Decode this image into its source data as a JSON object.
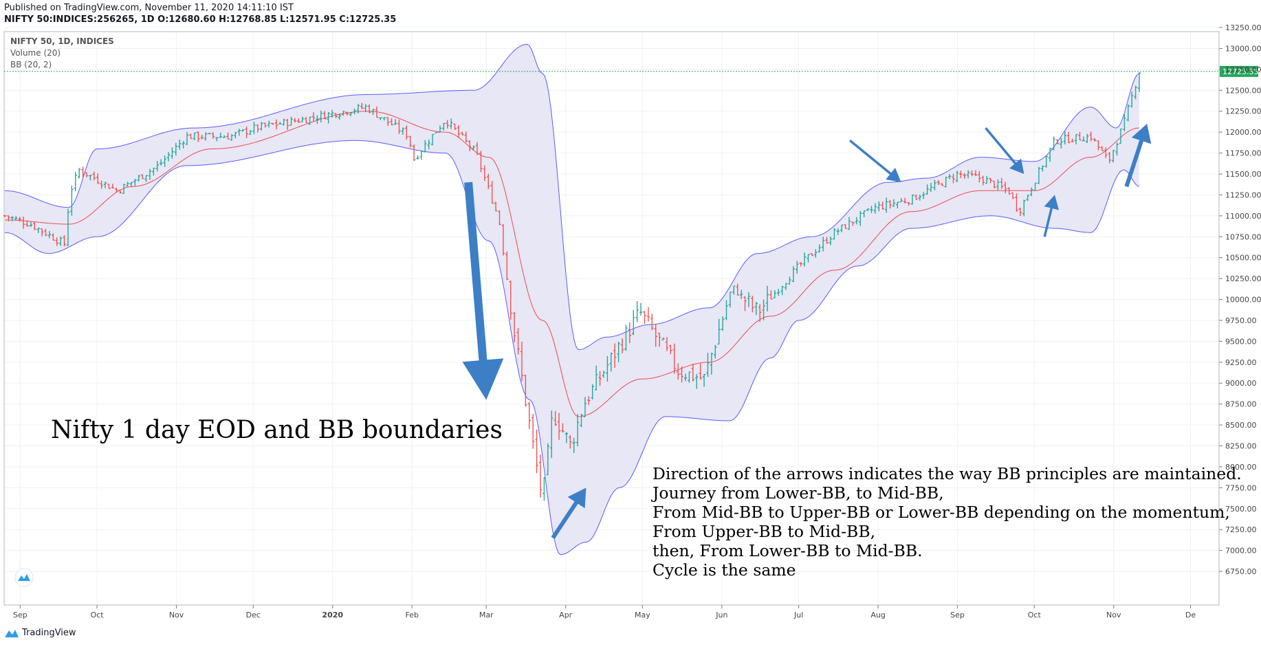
{
  "header": {
    "published": "Published on TradingView.com, November 11, 2020 14:11:10 IST",
    "symbol_ohlc": "NIFTY 50:INDICES:256265, 1D  O:12680.60 H:12768.85 L:12571.95 C:12725.35"
  },
  "legend": [
    "NIFTY 50, 1D, INDICES",
    "Volume (20)",
    "BB (20, 2)"
  ],
  "brand": {
    "name": "TradingView"
  },
  "colors": {
    "up": "#26a69a",
    "down": "#ef5350",
    "band_line": "#5a5aff",
    "band_fill": "#e6e6f4",
    "mid_line": "#f04a4a",
    "arrow": "#3d7fc6",
    "last_price": "#26a65b",
    "grid": "#eef1f5"
  },
  "annotations": {
    "title": "Nifty 1 day EOD and BB boundaries",
    "body": [
      "Direction of the arrows indicates the way BB principles are maintained.",
      "Journey from Lower-BB, to Mid-BB,",
      "From Mid-BB to Upper-BB or Lower-BB depending on the momentum,",
      "From Upper-BB to Mid-BB,",
      "then, From Lower-BB to Mid-BB.",
      "Cycle is the same"
    ]
  },
  "chart_data": {
    "type": "candlestick",
    "x_labels": [
      "Sep",
      "Oct",
      "Nov",
      "Dec",
      "2020",
      "Feb",
      "Mar",
      "Apr",
      "May",
      "Jun",
      "Jul",
      "Aug",
      "Sep",
      "Oct",
      "Nov",
      "De"
    ],
    "y_ticks": [
      6750,
      7000,
      7250,
      7500,
      7750,
      8000,
      8250,
      8500,
      8750,
      9000,
      9250,
      9500,
      9750,
      10000,
      10250,
      10500,
      10750,
      11000,
      11250,
      11500,
      11750,
      12000,
      12250,
      12500,
      12750,
      13000,
      13250
    ],
    "y_tick_labels": [
      "6750.00",
      "7000.00",
      "7250.00",
      "7500.00",
      "7750.00",
      "8000.00",
      "8250.00",
      "8500.00",
      "8750.00",
      "9000.00",
      "9250.00",
      "9500.00",
      "9750.00",
      "10000.00",
      "10250.00",
      "10500.00",
      "10750.00",
      "11000.00",
      "11250.00",
      "11500.00",
      "11750.00",
      "12000.00",
      "12250.00",
      "12500.00",
      "12750.00",
      "13000.00",
      "13250.00"
    ],
    "last_price": 12725.35,
    "last_price_label": "12725.35",
    "indicator": "Bollinger Bands (20, 2)",
    "close_path": [
      [
        "2019-08-26",
        11000
      ],
      [
        "2019-09-05",
        10900
      ],
      [
        "2019-09-19",
        10650
      ],
      [
        "2019-09-20",
        11250
      ],
      [
        "2019-09-24",
        11550
      ],
      [
        "2019-10-09",
        11300
      ],
      [
        "2019-10-25",
        11600
      ],
      [
        "2019-11-05",
        11950
      ],
      [
        "2019-11-22",
        11950
      ],
      [
        "2019-12-02",
        12050
      ],
      [
        "2019-12-20",
        12150
      ],
      [
        "2020-01-14",
        12300
      ],
      [
        "2020-01-31",
        11950
      ],
      [
        "2020-02-01",
        11650
      ],
      [
        "2020-02-14",
        12150
      ],
      [
        "2020-02-26",
        11750
      ],
      [
        "2020-03-06",
        10950
      ],
      [
        "2020-03-12",
        9600
      ],
      [
        "2020-03-19",
        8300
      ],
      [
        "2020-03-23",
        7600
      ],
      [
        "2020-03-27",
        8650
      ],
      [
        "2020-04-03",
        8250
      ],
      [
        "2020-04-08",
        8750
      ],
      [
        "2020-04-30",
        9850
      ],
      [
        "2020-05-15",
        9150
      ],
      [
        "2020-05-25",
        9050
      ],
      [
        "2020-06-05",
        10150
      ],
      [
        "2020-06-15",
        9850
      ],
      [
        "2020-07-01",
        10400
      ],
      [
        "2020-07-15",
        10800
      ],
      [
        "2020-07-31",
        11100
      ],
      [
        "2020-08-14",
        11200
      ],
      [
        "2020-09-01",
        11500
      ],
      [
        "2020-09-10",
        11450
      ],
      [
        "2020-09-21",
        11300
      ],
      [
        "2020-09-25",
        11050
      ],
      [
        "2020-10-09",
        11900
      ],
      [
        "2020-10-23",
        11950
      ],
      [
        "2020-10-30",
        11650
      ],
      [
        "2020-11-05",
        12100
      ],
      [
        "2020-11-11",
        12725
      ]
    ],
    "upper_band_path": [
      [
        "2019-08-26",
        11300
      ],
      [
        "2019-09-20",
        11100
      ],
      [
        "2019-10-01",
        11800
      ],
      [
        "2019-11-08",
        12050
      ],
      [
        "2020-01-15",
        12450
      ],
      [
        "2020-02-25",
        12500
      ],
      [
        "2020-03-17",
        13050
      ],
      [
        "2020-03-23",
        12700
      ],
      [
        "2020-04-06",
        9400
      ],
      [
        "2020-04-17",
        9550
      ],
      [
        "2020-05-04",
        9700
      ],
      [
        "2020-05-27",
        9900
      ],
      [
        "2020-06-15",
        10550
      ],
      [
        "2020-07-06",
        10750
      ],
      [
        "2020-08-05",
        11400
      ],
      [
        "2020-08-20",
        11450
      ],
      [
        "2020-09-10",
        11700
      ],
      [
        "2020-10-01",
        11650
      ],
      [
        "2020-10-23",
        12300
      ],
      [
        "2020-11-02",
        12050
      ],
      [
        "2020-11-11",
        12700
      ]
    ],
    "lower_band_path": [
      [
        "2019-08-26",
        10800
      ],
      [
        "2019-09-12",
        10550
      ],
      [
        "2019-10-01",
        10750
      ],
      [
        "2019-11-05",
        11600
      ],
      [
        "2020-01-10",
        11900
      ],
      [
        "2020-02-14",
        11750
      ],
      [
        "2020-03-02",
        10700
      ],
      [
        "2020-03-18",
        8800
      ],
      [
        "2020-03-30",
        6950
      ],
      [
        "2020-04-09",
        7100
      ],
      [
        "2020-04-22",
        7750
      ],
      [
        "2020-05-10",
        8600
      ],
      [
        "2020-06-04",
        8550
      ],
      [
        "2020-06-20",
        9300
      ],
      [
        "2020-07-01",
        9750
      ],
      [
        "2020-07-24",
        10400
      ],
      [
        "2020-08-14",
        10850
      ],
      [
        "2020-09-14",
        11000
      ],
      [
        "2020-10-09",
        10850
      ],
      [
        "2020-10-23",
        10800
      ],
      [
        "2020-11-05",
        11550
      ],
      [
        "2020-11-11",
        11350
      ]
    ],
    "mid_band_path": [
      [
        "2019-08-26",
        10950
      ],
      [
        "2019-09-20",
        10900
      ],
      [
        "2019-10-15",
        11350
      ],
      [
        "2019-11-15",
        11800
      ],
      [
        "2020-01-15",
        12250
      ],
      [
        "2020-02-14",
        12000
      ],
      [
        "2020-03-02",
        11700
      ],
      [
        "2020-03-23",
        9750
      ],
      [
        "2020-04-06",
        8600
      ],
      [
        "2020-05-01",
        9050
      ],
      [
        "2020-05-27",
        9250
      ],
      [
        "2020-06-20",
        9800
      ],
      [
        "2020-07-15",
        10350
      ],
      [
        "2020-08-14",
        11050
      ],
      [
        "2020-09-10",
        11300
      ],
      [
        "2020-10-01",
        11300
      ],
      [
        "2020-10-23",
        11700
      ],
      [
        "2020-11-11",
        12050
      ]
    ],
    "arrows": [
      {
        "from": [
          "2020-02-23",
          11400
        ],
        "to": [
          "2020-03-01",
          8800
        ],
        "style": "thick"
      },
      {
        "from": [
          "2020-03-27",
          7150
        ],
        "to": [
          "2020-04-09",
          7750
        ],
        "style": "medium"
      },
      {
        "from": [
          "2020-07-21",
          11900
        ],
        "to": [
          "2020-08-10",
          11400
        ],
        "style": "thin"
      },
      {
        "from": [
          "2020-09-12",
          12050
        ],
        "to": [
          "2020-09-27",
          11500
        ],
        "style": "thin"
      },
      {
        "from": [
          "2020-10-05",
          10750
        ],
        "to": [
          "2020-10-09",
          11250
        ],
        "style": "thin"
      },
      {
        "from": [
          "2020-11-06",
          11350
        ],
        "to": [
          "2020-11-14",
          12100
        ],
        "style": "medium"
      }
    ]
  }
}
